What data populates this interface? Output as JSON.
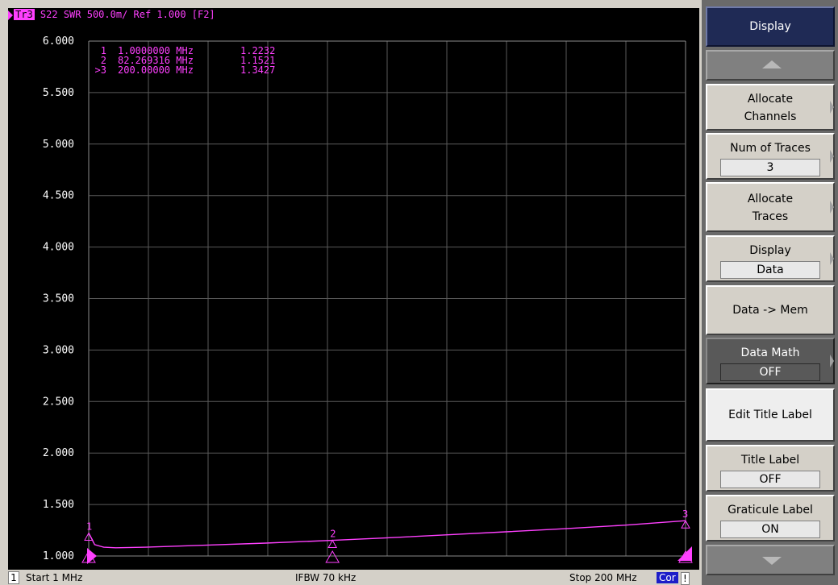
{
  "trace_header": {
    "trace_label": "Tr3",
    "text": "S22  SWR  500.0m/  Ref  1.000  [F2]"
  },
  "markers": [
    {
      "id": "1",
      "freq": "1.0000000 MHz",
      "value": "1.2232"
    },
    {
      "id": "2",
      "freq": "82.269316 MHz",
      "value": "1.1521"
    },
    {
      "id": ">3",
      "freq": "200.00000 MHz",
      "value": "1.3427"
    }
  ],
  "status": {
    "channel": "1",
    "start": "Start 1 MHz",
    "ifbw": "IFBW 70 kHz",
    "stop": "Stop 200 MHz",
    "cor": "Cor",
    "warn": "!"
  },
  "softkeys": {
    "title": "Display",
    "allocate_channels": "Allocate Channels",
    "num_of_traces": {
      "label": "Num of Traces",
      "value": "3"
    },
    "allocate_traces": "Allocate Traces",
    "display": {
      "label": "Display",
      "value": "Data"
    },
    "data_to_mem": "Data -> Mem",
    "data_math": {
      "label": "Data Math",
      "value": "OFF"
    },
    "edit_title_label": "Edit Title Label",
    "title_label": {
      "label": "Title Label",
      "value": "OFF"
    },
    "graticule_label": {
      "label": "Graticule Label",
      "value": "ON"
    }
  },
  "colors": {
    "trace": "#ff40ff",
    "background": "#000000",
    "grid": "#5a5a5a",
    "panel": "#6a6a6a"
  },
  "chart_data": {
    "type": "line",
    "ylabels": [
      "6.000",
      "5.500",
      "5.000",
      "4.500",
      "4.000",
      "3.500",
      "3.000",
      "2.500",
      "2.000",
      "1.500",
      "1.000"
    ],
    "ylim": [
      1.0,
      6.0
    ],
    "xlim": [
      1,
      200
    ],
    "x_divisions": 10,
    "y_divisions": 10,
    "grid": true,
    "series": [
      {
        "x": [
          1,
          3,
          6,
          10,
          20,
          40,
          60,
          82.27,
          100,
          120,
          140,
          160,
          180,
          200
        ],
        "y": [
          1.2232,
          1.11,
          1.085,
          1.08,
          1.085,
          1.105,
          1.125,
          1.1521,
          1.175,
          1.205,
          1.235,
          1.265,
          1.3,
          1.3427
        ]
      }
    ],
    "marker_points": [
      {
        "id": "1",
        "x": 1,
        "y": 1.2232
      },
      {
        "id": "2",
        "x": 82.27,
        "y": 1.1521
      },
      {
        "id": "3",
        "x": 200,
        "y": 1.3427
      }
    ]
  }
}
